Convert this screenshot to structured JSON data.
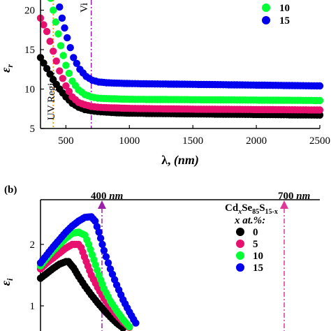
{
  "chart_data": [
    {
      "type": "scatter",
      "panel_label": "",
      "xlabel_symbol": "λ,",
      "xlabel_unit": "(nm)",
      "ylabel": "ε",
      "ylabel_sub": "r",
      "xlim": [
        300,
        2500
      ],
      "ylim": [
        5,
        22
      ],
      "x_ticks": [
        "500",
        "1000",
        "1500",
        "2000",
        "2500"
      ],
      "y_ticks": [
        "5",
        "10",
        "15",
        "20"
      ],
      "region_label_uv": "UV Region",
      "region_label_vis": "Vi",
      "markers_lines_nm": [
        400,
        700
      ],
      "legend": [
        {
          "name": "10",
          "color": "#00ff33"
        },
        {
          "name": "15",
          "color": "#0000ee"
        }
      ],
      "series": [
        {
          "name": "0",
          "color": "#000000",
          "x": [
            300,
            350,
            400,
            450,
            500,
            550,
            600,
            650,
            700,
            750,
            800,
            900,
            1000,
            1200,
            1500,
            2000,
            2500
          ],
          "y": [
            14.0,
            12.6,
            11.2,
            10.0,
            9.0,
            8.2,
            7.7,
            7.4,
            7.25,
            7.15,
            7.1,
            7.0,
            6.95,
            6.9,
            6.85,
            6.78,
            6.7
          ]
        },
        {
          "name": "5",
          "color": "#e8106e",
          "x": [
            300,
            350,
            400,
            450,
            500,
            550,
            600,
            650,
            700,
            750,
            800,
            900,
            1000,
            1200,
            1500,
            2000,
            2500
          ],
          "y": [
            19.0,
            17.3,
            14.8,
            12.3,
            10.4,
            9.0,
            8.3,
            8.0,
            7.8,
            7.7,
            7.65,
            7.6,
            7.55,
            7.5,
            7.45,
            7.4,
            7.35
          ]
        },
        {
          "name": "10",
          "color": "#00ff33",
          "x": [
            380,
            420,
            460,
            500,
            550,
            600,
            650,
            700,
            750,
            800,
            900,
            1000,
            1200,
            1500,
            2000,
            2500
          ],
          "y": [
            21.5,
            18.5,
            15.5,
            13.0,
            11.0,
            9.9,
            9.3,
            9.0,
            8.85,
            8.8,
            8.75,
            8.7,
            8.68,
            8.65,
            8.6,
            8.55
          ]
        },
        {
          "name": "15",
          "color": "#0000ee",
          "x": [
            430,
            470,
            510,
            560,
            610,
            660,
            710,
            760,
            820,
            900,
            1000,
            1200,
            1500,
            2000,
            2500
          ],
          "y": [
            21.8,
            19.0,
            16.5,
            14.0,
            12.5,
            11.6,
            11.1,
            10.9,
            10.8,
            10.75,
            10.7,
            10.65,
            10.6,
            10.5,
            10.4
          ]
        }
      ]
    },
    {
      "type": "scatter",
      "panel_label": "(b)",
      "ylabel": "ε",
      "ylabel_sub": "i",
      "ylim": [
        0.6,
        2.75
      ],
      "y_ticks": [
        "1",
        "2"
      ],
      "marker_label_400": "400",
      "marker_label_700": "700",
      "marker_unit": "nm",
      "legend_title_parts": [
        "Cd",
        "x",
        "Se",
        "85",
        "S",
        "15-x"
      ],
      "legend_subtitle": "x at.%:",
      "legend": [
        {
          "name": "0",
          "color": "#000000"
        },
        {
          "name": "5",
          "color": "#e8106e"
        },
        {
          "name": "10",
          "color": "#00ff33"
        },
        {
          "name": "15",
          "color": "#0000ee"
        }
      ],
      "series": [
        {
          "name": "0",
          "color": "#000000",
          "x": [
            300,
            350,
            400,
            450,
            500,
            520,
            560,
            600,
            650,
            700,
            750,
            800,
            850,
            900,
            950
          ],
          "y": [
            1.45,
            1.53,
            1.61,
            1.68,
            1.72,
            1.72,
            1.62,
            1.48,
            1.32,
            1.18,
            1.05,
            0.93,
            0.82,
            0.72,
            0.64
          ]
        },
        {
          "name": "5",
          "color": "#e8106e",
          "x": [
            300,
            350,
            400,
            450,
            500,
            550,
            600,
            620,
            660,
            700,
            750,
            800,
            850,
            900,
            950,
            1000
          ],
          "y": [
            1.6,
            1.7,
            1.78,
            1.86,
            1.94,
            2.0,
            2.0,
            1.95,
            1.72,
            1.5,
            1.3,
            1.12,
            0.98,
            0.85,
            0.74,
            0.65
          ]
        },
        {
          "name": "10",
          "color": "#00ff33",
          "x": [
            300,
            350,
            400,
            450,
            500,
            550,
            600,
            650,
            680,
            720,
            760,
            800,
            850,
            900,
            950,
            1000
          ],
          "y": [
            1.65,
            1.78,
            1.9,
            2.0,
            2.1,
            2.18,
            2.2,
            2.15,
            2.0,
            1.75,
            1.5,
            1.28,
            1.08,
            0.92,
            0.78,
            0.66
          ]
        },
        {
          "name": "15",
          "color": "#0000ee",
          "x": [
            300,
            350,
            400,
            450,
            500,
            550,
            600,
            650,
            700,
            730,
            760,
            800,
            850,
            900,
            950,
            1000,
            1050
          ],
          "y": [
            1.7,
            1.83,
            1.96,
            2.08,
            2.2,
            2.3,
            2.38,
            2.44,
            2.45,
            2.38,
            2.2,
            1.9,
            1.6,
            1.34,
            1.1,
            0.9,
            0.72
          ]
        }
      ]
    }
  ]
}
